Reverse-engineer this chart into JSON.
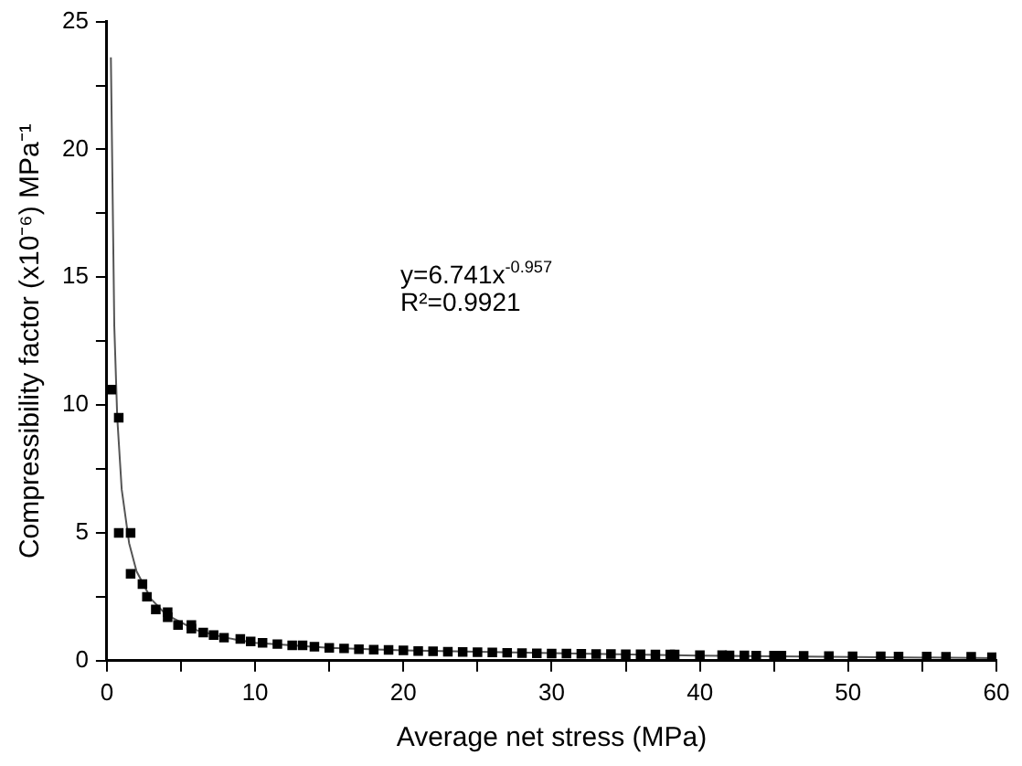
{
  "chart_data": {
    "type": "scatter",
    "xlabel": "Average net stress (MPa)",
    "ylabel": "Compressibility factor (x10⁻⁶) MPa⁻¹",
    "annotations": [
      "y=6.741x$^{-0.957}$",
      "R²=0.9921"
    ],
    "marker": "square",
    "xlim": [
      0,
      60
    ],
    "xticks": [
      0,
      {
        "value": 5,
        "label": null
      },
      10,
      {
        "value": 15,
        "label": null
      },
      20,
      {
        "value": 25,
        "label": null
      },
      30,
      {
        "value": 35,
        "label": null
      },
      40,
      {
        "value": 45,
        "label": null
      },
      50,
      {
        "value": 55,
        "label": null
      },
      60
    ],
    "ylim": [
      0,
      25
    ],
    "yticks": [
      0,
      {
        "value": 2.5,
        "label": null
      },
      5,
      {
        "value": 7.5,
        "label": null
      },
      10,
      {
        "value": 12.5,
        "label": null
      },
      15,
      {
        "value": 17.5,
        "label": null
      },
      20,
      {
        "value": 22.5,
        "label": null
      },
      25
    ],
    "series": [
      {
        "type": "scatter",
        "color": "#000000",
        "x": [
          0.3,
          0.8,
          0.8,
          1.6,
          1.6,
          2.4,
          2.7,
          3.3,
          4.1,
          4.1,
          4.8,
          5.7,
          5.7,
          6.5,
          7.2,
          7.9,
          9,
          9.7,
          10.5,
          11.5,
          12.5,
          13.2,
          14,
          15,
          16,
          17,
          18,
          19,
          20,
          21,
          22,
          23,
          24,
          25,
          26,
          27,
          28,
          29,
          30,
          31,
          32,
          33,
          34,
          35,
          36,
          37,
          38,
          38.3,
          40,
          41.5,
          42,
          43,
          43.8,
          45,
          45.5,
          47,
          48.7,
          50.3,
          52.2,
          53.4,
          55.3,
          56.6,
          58.3,
          59.7
        ],
        "values": [
          10.6,
          9.5,
          5,
          5,
          3.4,
          3,
          2.5,
          2,
          1.9,
          1.7,
          1.4,
          1.4,
          1.25,
          1.1,
          1,
          0.9,
          0.85,
          0.75,
          0.7,
          0.65,
          0.6,
          0.6,
          0.55,
          0.5,
          0.48,
          0.45,
          0.43,
          0.42,
          0.4,
          0.38,
          0.37,
          0.35,
          0.34,
          0.33,
          0.32,
          0.31,
          0.3,
          0.29,
          0.28,
          0.28,
          0.27,
          0.26,
          0.26,
          0.25,
          0.25,
          0.24,
          0.24,
          0.24,
          0.22,
          0.22,
          0.21,
          0.21,
          0.2,
          0.2,
          0.2,
          0.19,
          0.18,
          0.17,
          0.17,
          0.16,
          0.16,
          0.15,
          0.15,
          0.14
        ]
      },
      {
        "type": "line",
        "color": "#555555",
        "marker": "none",
        "x": [
          0.27,
          0.5,
          0.7,
          1,
          1.5,
          2,
          3,
          4,
          6,
          8,
          10,
          15,
          20,
          30,
          40,
          60
        ],
        "values": [
          23.6,
          13.1,
          9.5,
          6.7,
          4.6,
          3.5,
          2.4,
          1.8,
          1.2,
          0.9,
          0.7,
          0.5,
          0.4,
          0.3,
          0.2,
          0.1
        ]
      }
    ]
  }
}
